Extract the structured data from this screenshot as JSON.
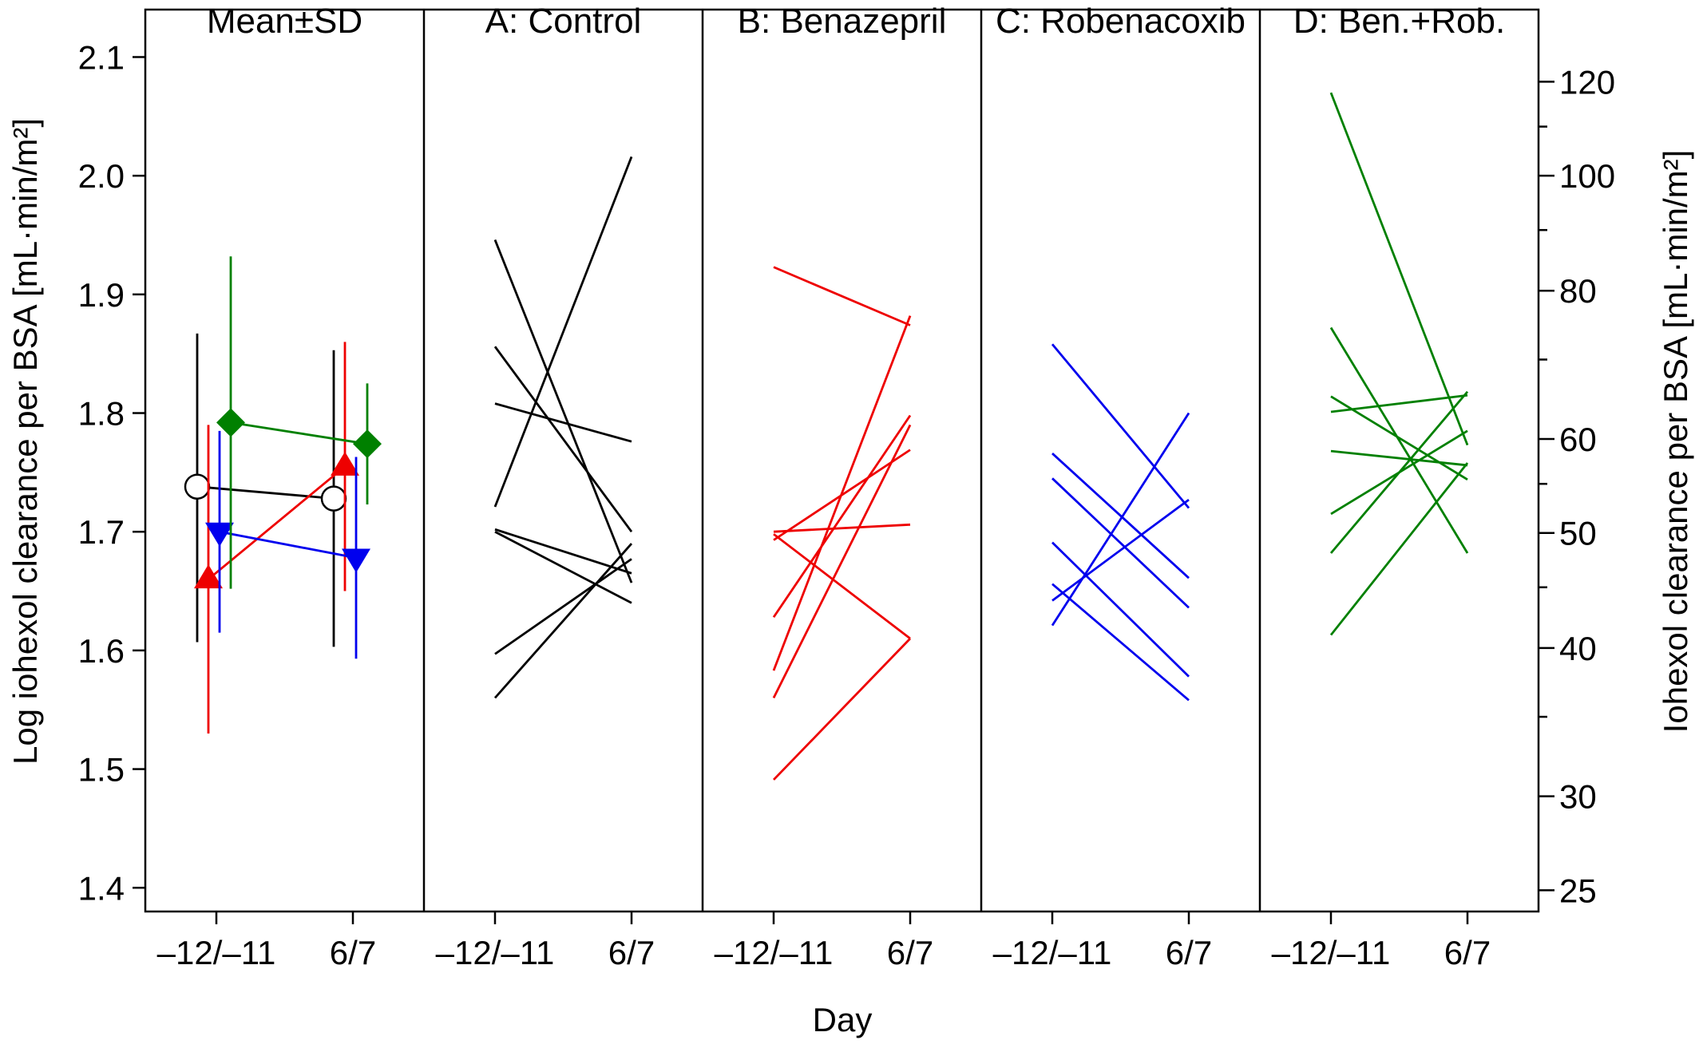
{
  "chart_data": {
    "type": "line",
    "xlabel": "Day",
    "ylabel_left": "Log iohexol clearance per BSA [mL·min/m²]",
    "ylabel_right": "Iohexol clearance per BSA [mL·min/m²]",
    "ylim": [
      1.38,
      2.14
    ],
    "x_categories": [
      "–12/–11",
      "6/7"
    ],
    "left_ticks": [
      "1.4",
      "1.5",
      "1.6",
      "1.7",
      "1.8",
      "1.9",
      "2.0",
      "2.1"
    ],
    "right_ticks": [
      "25",
      "30",
      "40",
      "50",
      "60",
      "80",
      "100",
      "120"
    ],
    "right_minor_ticks": [
      35,
      45,
      55,
      70,
      90,
      110
    ],
    "colors": {
      "A": "#000000",
      "B": "#ee0000",
      "C": "#0000ee",
      "D": "#008000"
    },
    "mean_panel": {
      "title": "Mean±SD",
      "series": [
        {
          "group": "A",
          "marker": "circle",
          "mean": [
            1.738,
            1.728
          ],
          "sd_low": [
            1.607,
            1.603
          ],
          "sd_high": [
            1.867,
            1.853
          ]
        },
        {
          "group": "B",
          "marker": "triangle-up",
          "mean": [
            1.66,
            1.755
          ],
          "sd_low": [
            1.53,
            1.65
          ],
          "sd_high": [
            1.79,
            1.86
          ]
        },
        {
          "group": "C",
          "marker": "triangle-down",
          "mean": [
            1.7,
            1.678
          ],
          "sd_low": [
            1.615,
            1.593
          ],
          "sd_high": [
            1.785,
            1.763
          ]
        },
        {
          "group": "D",
          "marker": "diamond",
          "mean": [
            1.792,
            1.774
          ],
          "sd_low": [
            1.652,
            1.723
          ],
          "sd_high": [
            1.932,
            1.825
          ]
        }
      ]
    },
    "panels": [
      {
        "group": "A",
        "title": "A: Control",
        "lines": [
          [
            1.946,
            1.657
          ],
          [
            1.856,
            1.7
          ],
          [
            1.808,
            1.776
          ],
          [
            1.721,
            2.016
          ],
          [
            1.702,
            1.665
          ],
          [
            1.7,
            1.64
          ],
          [
            1.597,
            1.677
          ],
          [
            1.56,
            1.69
          ]
        ]
      },
      {
        "group": "B",
        "title": "B: Benazepril",
        "lines": [
          [
            1.923,
            1.874
          ],
          [
            1.7,
            1.706
          ],
          [
            1.698,
            1.61
          ],
          [
            1.693,
            1.769
          ],
          [
            1.628,
            1.798
          ],
          [
            1.583,
            1.882
          ],
          [
            1.56,
            1.79
          ],
          [
            1.491,
            1.61
          ]
        ]
      },
      {
        "group": "C",
        "title": "C: Robenacoxib",
        "lines": [
          [
            1.858,
            1.72
          ],
          [
            1.766,
            1.661
          ],
          [
            1.745,
            1.636
          ],
          [
            1.691,
            1.578
          ],
          [
            1.656,
            1.558
          ],
          [
            1.642,
            1.727
          ],
          [
            1.621,
            1.8
          ]
        ]
      },
      {
        "group": "D",
        "title": "D: Ben.+Rob.",
        "lines": [
          [
            2.07,
            1.773
          ],
          [
            1.872,
            1.682
          ],
          [
            1.814,
            1.744
          ],
          [
            1.801,
            1.815
          ],
          [
            1.768,
            1.756
          ],
          [
            1.715,
            1.785
          ],
          [
            1.682,
            1.818
          ],
          [
            1.613,
            1.758
          ]
        ]
      }
    ]
  }
}
